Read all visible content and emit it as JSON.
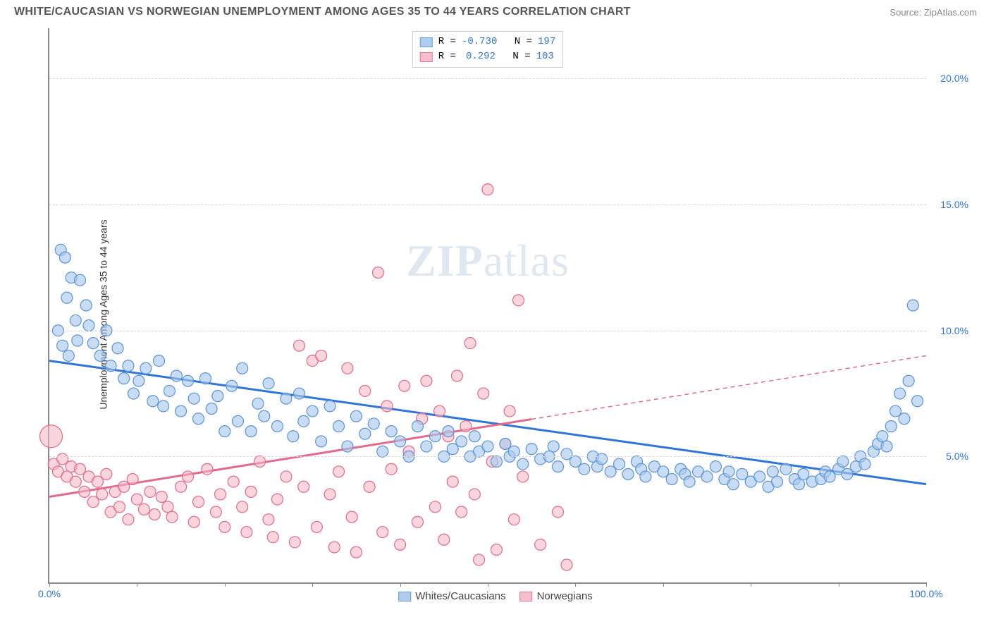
{
  "header": {
    "title": "WHITE/CAUCASIAN VS NORWEGIAN UNEMPLOYMENT AMONG AGES 35 TO 44 YEARS CORRELATION CHART",
    "source_label": "Source:",
    "source_value": "ZipAtlas.com"
  },
  "chart": {
    "type": "scatter",
    "ylabel": "Unemployment Among Ages 35 to 44 years",
    "watermark_a": "ZIP",
    "watermark_b": "atlas",
    "xlim": [
      0,
      100
    ],
    "ylim": [
      0,
      22
    ],
    "x_ticks": [
      0,
      10,
      20,
      30,
      40,
      50,
      60,
      70,
      80,
      90,
      100
    ],
    "x_tick_labels": {
      "0": "0.0%",
      "100": "100.0%"
    },
    "x_label_color": "#2e74d9",
    "y_ticks": [
      5,
      10,
      15,
      20
    ],
    "y_tick_labels": {
      "5": "5.0%",
      "10": "10.0%",
      "15": "15.0%",
      "20": "20.0%"
    },
    "y_label_color": "#2e74d9",
    "grid_color": "#d8d8d8",
    "axis_color": "#888888",
    "background_color": "#ffffff",
    "marker_radius": 8,
    "marker_large_radius": 16,
    "marker_stroke_width": 1.2,
    "regression_line_width": 3,
    "regression_dash": "6,5",
    "series": [
      {
        "key": "whites",
        "label": "Whites/Caucasians",
        "fill": "#a6c8ec",
        "stroke": "#5b93d6",
        "fill_opacity": 0.62,
        "R": "-0.730",
        "N": "197",
        "regression": {
          "x1": 0,
          "y1": 8.8,
          "x2": 100,
          "y2": 3.9,
          "color": "#2e74d9",
          "solid_to_x": 100
        },
        "points": [
          [
            1.3,
            13.2
          ],
          [
            1.8,
            12.9
          ],
          [
            2.5,
            12.1
          ],
          [
            2.0,
            11.3
          ],
          [
            3.5,
            12.0
          ],
          [
            4.2,
            11.0
          ],
          [
            3.0,
            10.4
          ],
          [
            1.0,
            10.0
          ],
          [
            1.5,
            9.4
          ],
          [
            2.2,
            9.0
          ],
          [
            3.2,
            9.6
          ],
          [
            4.5,
            10.2
          ],
          [
            5.0,
            9.5
          ],
          [
            5.8,
            9.0
          ],
          [
            6.5,
            10.0
          ],
          [
            7.0,
            8.6
          ],
          [
            7.8,
            9.3
          ],
          [
            8.5,
            8.1
          ],
          [
            9.0,
            8.6
          ],
          [
            9.6,
            7.5
          ],
          [
            10.2,
            8.0
          ],
          [
            11.0,
            8.5
          ],
          [
            11.8,
            7.2
          ],
          [
            12.5,
            8.8
          ],
          [
            13.0,
            7.0
          ],
          [
            13.7,
            7.6
          ],
          [
            14.5,
            8.2
          ],
          [
            15.0,
            6.8
          ],
          [
            15.8,
            8.0
          ],
          [
            16.5,
            7.3
          ],
          [
            17.0,
            6.5
          ],
          [
            17.8,
            8.1
          ],
          [
            18.5,
            6.9
          ],
          [
            19.2,
            7.4
          ],
          [
            20.0,
            6.0
          ],
          [
            20.8,
            7.8
          ],
          [
            21.5,
            6.4
          ],
          [
            22.0,
            8.5
          ],
          [
            23.0,
            6.0
          ],
          [
            23.8,
            7.1
          ],
          [
            24.5,
            6.6
          ],
          [
            25.0,
            7.9
          ],
          [
            26.0,
            6.2
          ],
          [
            27.0,
            7.3
          ],
          [
            27.8,
            5.8
          ],
          [
            28.5,
            7.5
          ],
          [
            29.0,
            6.4
          ],
          [
            30.0,
            6.8
          ],
          [
            31.0,
            5.6
          ],
          [
            32.0,
            7.0
          ],
          [
            33.0,
            6.2
          ],
          [
            34.0,
            5.4
          ],
          [
            35.0,
            6.6
          ],
          [
            36.0,
            5.9
          ],
          [
            37.0,
            6.3
          ],
          [
            38.0,
            5.2
          ],
          [
            39.0,
            6.0
          ],
          [
            40.0,
            5.6
          ],
          [
            41.0,
            5.0
          ],
          [
            42.0,
            6.2
          ],
          [
            43.0,
            5.4
          ],
          [
            44.0,
            5.8
          ],
          [
            45.0,
            5.0
          ],
          [
            45.5,
            6.0
          ],
          [
            46.0,
            5.3
          ],
          [
            47.0,
            5.6
          ],
          [
            48.0,
            5.0
          ],
          [
            48.5,
            5.8
          ],
          [
            49.0,
            5.2
          ],
          [
            50.0,
            5.4
          ],
          [
            51.0,
            4.8
          ],
          [
            52.0,
            5.5
          ],
          [
            52.5,
            5.0
          ],
          [
            53.0,
            5.2
          ],
          [
            54.0,
            4.7
          ],
          [
            55.0,
            5.3
          ],
          [
            56.0,
            4.9
          ],
          [
            57.0,
            5.0
          ],
          [
            57.5,
            5.4
          ],
          [
            58.0,
            4.6
          ],
          [
            59.0,
            5.1
          ],
          [
            60.0,
            4.8
          ],
          [
            61.0,
            4.5
          ],
          [
            62.0,
            5.0
          ],
          [
            62.5,
            4.6
          ],
          [
            63.0,
            4.9
          ],
          [
            64.0,
            4.4
          ],
          [
            65.0,
            4.7
          ],
          [
            66.0,
            4.3
          ],
          [
            67.0,
            4.8
          ],
          [
            67.5,
            4.5
          ],
          [
            68.0,
            4.2
          ],
          [
            69.0,
            4.6
          ],
          [
            70.0,
            4.4
          ],
          [
            71.0,
            4.1
          ],
          [
            72.0,
            4.5
          ],
          [
            72.5,
            4.3
          ],
          [
            73.0,
            4.0
          ],
          [
            74.0,
            4.4
          ],
          [
            75.0,
            4.2
          ],
          [
            76.0,
            4.6
          ],
          [
            77.0,
            4.1
          ],
          [
            77.5,
            4.4
          ],
          [
            78.0,
            3.9
          ],
          [
            79.0,
            4.3
          ],
          [
            80.0,
            4.0
          ],
          [
            81.0,
            4.2
          ],
          [
            82.0,
            3.8
          ],
          [
            82.5,
            4.4
          ],
          [
            83.0,
            4.0
          ],
          [
            84.0,
            4.5
          ],
          [
            85.0,
            4.1
          ],
          [
            85.5,
            3.9
          ],
          [
            86.0,
            4.3
          ],
          [
            87.0,
            4.0
          ],
          [
            88.0,
            4.1
          ],
          [
            88.5,
            4.4
          ],
          [
            89.0,
            4.2
          ],
          [
            90.0,
            4.5
          ],
          [
            90.5,
            4.8
          ],
          [
            91.0,
            4.3
          ],
          [
            92.0,
            4.6
          ],
          [
            92.5,
            5.0
          ],
          [
            93.0,
            4.7
          ],
          [
            94.0,
            5.2
          ],
          [
            94.5,
            5.5
          ],
          [
            95.0,
            5.8
          ],
          [
            95.5,
            5.4
          ],
          [
            96.0,
            6.2
          ],
          [
            96.5,
            6.8
          ],
          [
            97.0,
            7.5
          ],
          [
            97.5,
            6.5
          ],
          [
            98.0,
            8.0
          ],
          [
            98.5,
            11.0
          ],
          [
            99.0,
            7.2
          ]
        ]
      },
      {
        "key": "norwegians",
        "label": "Norwegians",
        "fill": "#f4b7c7",
        "stroke": "#e26a8a",
        "fill_opacity": 0.58,
        "R": "0.292",
        "N": "103",
        "regression": {
          "x1": 0,
          "y1": 3.4,
          "x2": 100,
          "y2": 9.0,
          "color": "#e26a8a",
          "solid_to_x": 55
        },
        "large_point": [
          0.2,
          5.8
        ],
        "points": [
          [
            0.5,
            4.7
          ],
          [
            1.0,
            4.4
          ],
          [
            1.5,
            4.9
          ],
          [
            2.0,
            4.2
          ],
          [
            2.5,
            4.6
          ],
          [
            3.0,
            4.0
          ],
          [
            3.5,
            4.5
          ],
          [
            4.0,
            3.6
          ],
          [
            4.5,
            4.2
          ],
          [
            5.0,
            3.2
          ],
          [
            5.5,
            4.0
          ],
          [
            6.0,
            3.5
          ],
          [
            6.5,
            4.3
          ],
          [
            7.0,
            2.8
          ],
          [
            7.5,
            3.6
          ],
          [
            8.0,
            3.0
          ],
          [
            8.5,
            3.8
          ],
          [
            9.0,
            2.5
          ],
          [
            9.5,
            4.1
          ],
          [
            10.0,
            3.3
          ],
          [
            10.8,
            2.9
          ],
          [
            11.5,
            3.6
          ],
          [
            12.0,
            2.7
          ],
          [
            12.8,
            3.4
          ],
          [
            13.5,
            3.0
          ],
          [
            14.0,
            2.6
          ],
          [
            15.0,
            3.8
          ],
          [
            15.8,
            4.2
          ],
          [
            16.5,
            2.4
          ],
          [
            17.0,
            3.2
          ],
          [
            18.0,
            4.5
          ],
          [
            19.0,
            2.8
          ],
          [
            19.5,
            3.5
          ],
          [
            20.0,
            2.2
          ],
          [
            21.0,
            4.0
          ],
          [
            22.0,
            3.0
          ],
          [
            22.5,
            2.0
          ],
          [
            23.0,
            3.6
          ],
          [
            24.0,
            4.8
          ],
          [
            25.0,
            2.5
          ],
          [
            25.5,
            1.8
          ],
          [
            26.0,
            3.3
          ],
          [
            27.0,
            4.2
          ],
          [
            28.0,
            1.6
          ],
          [
            28.5,
            9.4
          ],
          [
            29.0,
            3.8
          ],
          [
            30.0,
            8.8
          ],
          [
            30.5,
            2.2
          ],
          [
            31.0,
            9.0
          ],
          [
            32.0,
            3.5
          ],
          [
            32.5,
            1.4
          ],
          [
            33.0,
            4.4
          ],
          [
            34.0,
            8.5
          ],
          [
            34.5,
            2.6
          ],
          [
            35.0,
            1.2
          ],
          [
            36.0,
            7.6
          ],
          [
            36.5,
            3.8
          ],
          [
            37.5,
            12.3
          ],
          [
            38.0,
            2.0
          ],
          [
            38.5,
            7.0
          ],
          [
            39.0,
            4.5
          ],
          [
            40.0,
            1.5
          ],
          [
            40.5,
            7.8
          ],
          [
            41.0,
            5.2
          ],
          [
            42.0,
            2.4
          ],
          [
            42.5,
            6.5
          ],
          [
            43.0,
            8.0
          ],
          [
            44.0,
            3.0
          ],
          [
            44.5,
            6.8
          ],
          [
            45.0,
            1.7
          ],
          [
            45.5,
            5.8
          ],
          [
            46.0,
            4.0
          ],
          [
            46.5,
            8.2
          ],
          [
            47.0,
            2.8
          ],
          [
            47.5,
            6.2
          ],
          [
            48.0,
            9.5
          ],
          [
            48.5,
            3.5
          ],
          [
            49.0,
            0.9
          ],
          [
            49.5,
            7.5
          ],
          [
            50.0,
            15.6
          ],
          [
            50.5,
            4.8
          ],
          [
            51.0,
            1.3
          ],
          [
            52.0,
            5.5
          ],
          [
            52.5,
            6.8
          ],
          [
            53.0,
            2.5
          ],
          [
            53.5,
            11.2
          ],
          [
            54.0,
            4.2
          ],
          [
            56.0,
            1.5
          ],
          [
            58.0,
            2.8
          ],
          [
            59.0,
            0.7
          ]
        ]
      }
    ],
    "legend_top": {
      "r_label": "R =",
      "n_label": "N =",
      "value_color": "#2e74d9",
      "text_color": "#333333"
    }
  }
}
